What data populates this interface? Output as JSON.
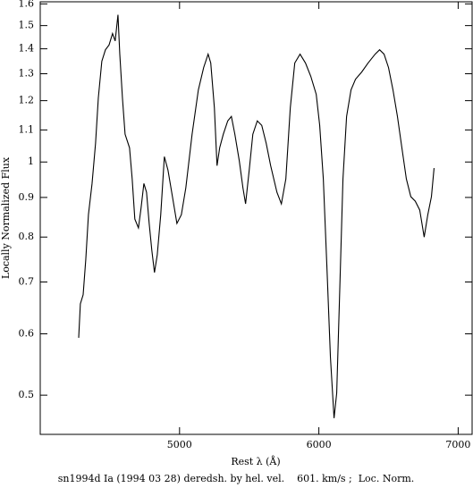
{
  "chart_data": {
    "type": "line",
    "caption": "sn1994d Ia (1994 03 28) deredsh. by hel. vel.    601. km/s ;  Loc. Norm.",
    "x_label": "Rest λ (Å)",
    "y_label": "Locally Normalized Flux",
    "log_y": true,
    "xlim": [
      4000,
      7100
    ],
    "ylim": [
      0.445,
      1.61
    ],
    "xticks": [
      5000,
      6000,
      7000
    ],
    "yticks": [
      0.5,
      0.6,
      0.7,
      0.8,
      0.9,
      1,
      1.1,
      1.2,
      1.3,
      1.4,
      1.5,
      1.6
    ],
    "series": [
      {
        "color": "#000000",
        "x": [
          4276,
          4288,
          4308,
          4327,
          4346,
          4372,
          4397,
          4417,
          4442,
          4468,
          4494,
          4519,
          4538,
          4558,
          4571,
          4590,
          4609,
          4641,
          4660,
          4679,
          4705,
          4724,
          4744,
          4763,
          4782,
          4801,
          4820,
          4840,
          4865,
          4891,
          4917,
          4949,
          4981,
          5013,
          5045,
          5090,
          5135,
          5173,
          5205,
          5224,
          5250,
          5269,
          5288,
          5314,
          5346,
          5372,
          5397,
          5429,
          5455,
          5474,
          5500,
          5526,
          5558,
          5590,
          5622,
          5654,
          5699,
          5731,
          5763,
          5795,
          5827,
          5865,
          5904,
          5942,
          5981,
          6006,
          6032,
          6058,
          6083,
          6109,
          6128,
          6147,
          6173,
          6199,
          6231,
          6263,
          6308,
          6353,
          6404,
          6436,
          6468,
          6500,
          6532,
          6564,
          6596,
          6628,
          6660,
          6692,
          6724,
          6756,
          6782,
          6808,
          6827
        ],
        "values": [
          0.593,
          0.656,
          0.674,
          0.749,
          0.855,
          0.938,
          1.057,
          1.21,
          1.349,
          1.396,
          1.416,
          1.465,
          1.433,
          1.549,
          1.378,
          1.21,
          1.086,
          1.043,
          0.951,
          0.844,
          0.822,
          0.873,
          0.938,
          0.914,
          0.833,
          0.769,
          0.72,
          0.759,
          0.855,
          1.016,
          0.976,
          0.902,
          0.833,
          0.855,
          0.926,
          1.086,
          1.239,
          1.324,
          1.378,
          1.342,
          1.175,
          0.989,
          1.043,
          1.086,
          1.13,
          1.145,
          1.086,
          1.003,
          0.926,
          0.883,
          0.976,
          1.086,
          1.13,
          1.115,
          1.057,
          0.989,
          0.914,
          0.883,
          0.951,
          1.175,
          1.342,
          1.378,
          1.342,
          1.29,
          1.223,
          1.115,
          0.951,
          0.73,
          0.56,
          0.467,
          0.503,
          0.656,
          0.951,
          1.145,
          1.239,
          1.279,
          1.307,
          1.342,
          1.378,
          1.396,
          1.378,
          1.324,
          1.239,
          1.145,
          1.043,
          0.951,
          0.902,
          0.89,
          0.867,
          0.8,
          0.855,
          0.902,
          0.982
        ]
      }
    ]
  }
}
